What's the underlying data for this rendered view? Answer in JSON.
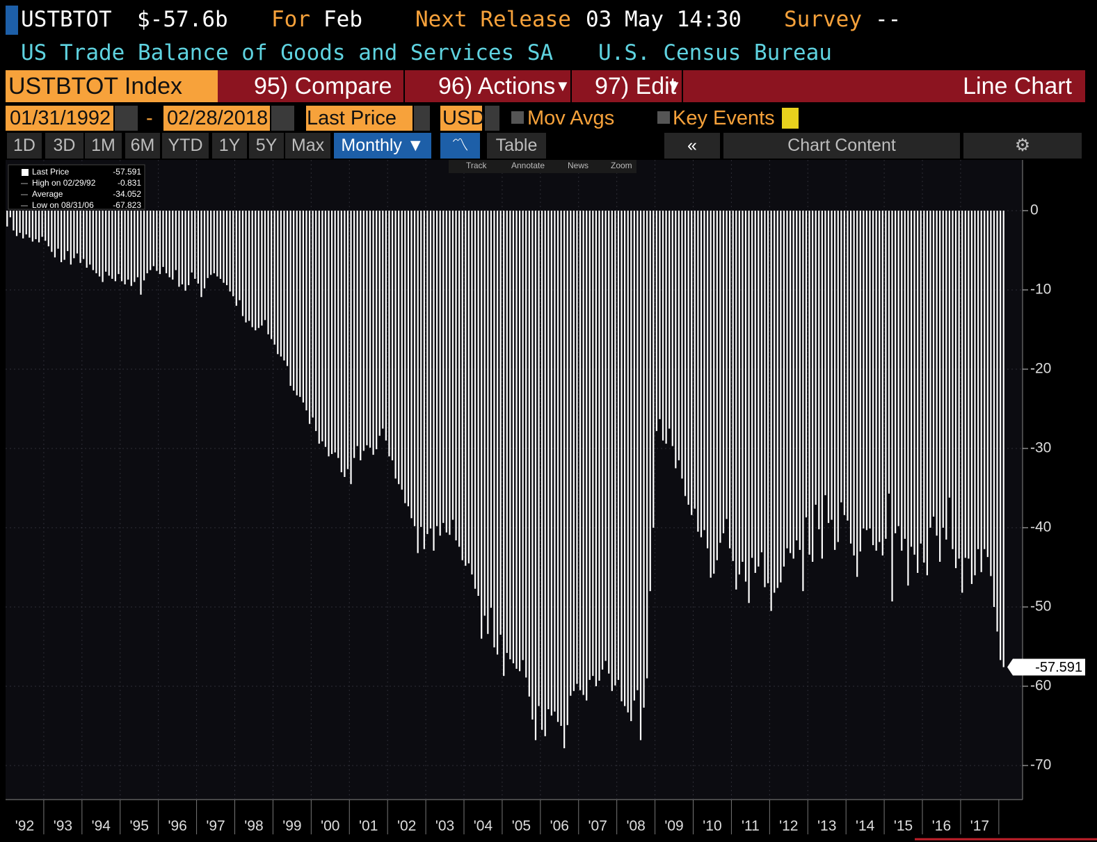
{
  "header": {
    "ticker": "USTBTOT",
    "price": "$-57.6b",
    "for_label": "For",
    "period": "Feb",
    "next_label": "Next Release",
    "next_date": "03 May 14:30",
    "survey_label": "Survey",
    "survey": "--",
    "description": "US Trade Balance of Goods and Services SA",
    "source": "U.S. Census Bureau"
  },
  "toolbar": {
    "security": "USTBTOT Index",
    "compare": "95) Compare",
    "actions": "96) Actions",
    "edit": "97) Edit",
    "chart_type": "Line Chart",
    "start_date": "01/31/1992",
    "end_date": "02/28/2018",
    "field": "Last Price",
    "currency": "USD",
    "mov_avgs": "Mov Avgs",
    "key_events": "Key Events",
    "periods": [
      "1D",
      "3D",
      "1M",
      "6M",
      "YTD",
      "1Y",
      "5Y",
      "Max"
    ],
    "frequency": "Monthly ▼",
    "table": "Table",
    "chart_content": "Chart Content",
    "tools": [
      "Track",
      "Annotate",
      "News",
      "Zoom"
    ]
  },
  "chart_data": {
    "type": "bar",
    "color": "#ffffff",
    "grid": true,
    "ylim": [
      -74.3,
      6.4
    ],
    "yticks": [
      0,
      -10,
      -20,
      -30,
      -40,
      -50,
      -60,
      -70
    ],
    "x_labels": [
      "'92",
      "'93",
      "'94",
      "'95",
      "'96",
      "'97",
      "'98",
      "'99",
      "'00",
      "'01",
      "'02",
      "'03",
      "'04",
      "'05",
      "'06",
      "'07",
      "'08",
      "'09",
      "'10",
      "'11",
      "'12",
      "'13",
      "'14",
      "'15",
      "'16",
      "'17"
    ],
    "legend": [
      {
        "label": "Last Price",
        "value": -57.591
      },
      {
        "label": "High on 02/29/92",
        "value": -0.831
      },
      {
        "label": "Average",
        "value": -34.052
      },
      {
        "label": "Low on 08/31/06",
        "value": -67.823
      }
    ],
    "values": [
      -2.0,
      -0.831,
      -2.5,
      -3.2,
      -2.8,
      -3.5,
      -3.0,
      -3.4,
      -3.9,
      -3.6,
      -4.0,
      -3.3,
      -3.8,
      -4.5,
      -5.2,
      -5.9,
      -4.8,
      -6.5,
      -6.2,
      -5.1,
      -6.8,
      -6.0,
      -5.4,
      -6.6,
      -6.1,
      -7.2,
      -6.8,
      -7.5,
      -7.9,
      -8.3,
      -9.0,
      -7.7,
      -8.2,
      -8.6,
      -8.9,
      -8.0,
      -8.9,
      -9.3,
      -8.7,
      -9.5,
      -9.0,
      -8.4,
      -10.6,
      -8.8,
      -7.9,
      -7.5,
      -7.0,
      -7.6,
      -8.0,
      -7.1,
      -7.9,
      -8.4,
      -8.7,
      -7.5,
      -9.6,
      -9.3,
      -10.1,
      -9.4,
      -7.8,
      -8.6,
      -9.2,
      -10.9,
      -9.8,
      -8.5,
      -8.1,
      -7.9,
      -8.3,
      -8.6,
      -9.1,
      -9.4,
      -10.2,
      -10.8,
      -12.0,
      -11.3,
      -13.3,
      -14.1,
      -13.9,
      -14.7,
      -15.1,
      -14.8,
      -14.5,
      -13.8,
      -15.6,
      -16.2,
      -16.9,
      -18.1,
      -18.4,
      -18.9,
      -19.6,
      -22.1,
      -22.7,
      -23.3,
      -23.5,
      -24.2,
      -25.2,
      -26.9,
      -26.1,
      -27.8,
      -29.4,
      -29.1,
      -29.8,
      -31.0,
      -30.7,
      -30.5,
      -31.2,
      -33.0,
      -33.6,
      -32.6,
      -34.5,
      -31.2,
      -29.7,
      -31.5,
      -30.3,
      -29.6,
      -29.9,
      -30.8,
      -30.1,
      -28.4,
      -27.5,
      -29.0,
      -31.0,
      -31.5,
      -33.8,
      -34.5,
      -35.2,
      -36.9,
      -37.3,
      -38.8,
      -39.8,
      -43.2,
      -39.9,
      -42.7,
      -40.8,
      -40.1,
      -42.9,
      -39.8,
      -41.0,
      -39.4,
      -40.6,
      -40.9,
      -39.0,
      -41.6,
      -42.4,
      -44.1,
      -44.8,
      -44.5,
      -45.9,
      -47.7,
      -48.6,
      -54.0,
      -51.1,
      -53.4,
      -50.1,
      -55.1,
      -56.0,
      -53.5,
      -58.7,
      -55.8,
      -56.6,
      -57.1,
      -57.8,
      -58.1,
      -56.7,
      -58.9,
      -61.3,
      -64.2,
      -66.8,
      -62.5,
      -65.5,
      -66.3,
      -62.9,
      -63.7,
      -63.2,
      -64.5,
      -65.0,
      -67.823,
      -64.9,
      -61.2,
      -60.6,
      -59.7,
      -60.5,
      -61.1,
      -61.8,
      -59.2,
      -58.7,
      -60.0,
      -59.3,
      -57.9,
      -56.8,
      -58.4,
      -60.6,
      -59.9,
      -59.2,
      -61.9,
      -62.5,
      -63.3,
      -64.4,
      -61.8,
      -60.5,
      -66.8,
      -62.7,
      -59.0,
      -48.0,
      -40.0,
      -27.8,
      -26.3,
      -29.0,
      -29.4,
      -27.5,
      -29.7,
      -32.5,
      -31.5,
      -33.8,
      -36.0,
      -37.1,
      -38.4,
      -37.6,
      -40.5,
      -41.2,
      -40.3,
      -42.6,
      -46.3,
      -45.8,
      -44.1,
      -41.9,
      -40.7,
      -38.9,
      -42.6,
      -44.2,
      -47.8,
      -45.9,
      -44.3,
      -46.8,
      -49.5,
      -43.8,
      -45.7,
      -44.9,
      -43.1,
      -47.5,
      -47.0,
      -50.5,
      -48.2,
      -47.6,
      -46.9,
      -44.9,
      -42.6,
      -43.2,
      -43.9,
      -41.6,
      -42.8,
      -48.0,
      -38.7,
      -43.4,
      -44.3,
      -37.1,
      -40.2,
      -43.9,
      -35.9,
      -39.4,
      -39.0,
      -42.8,
      -41.8,
      -36.8,
      -38.4,
      -39.1,
      -42.0,
      -43.5,
      -46.2,
      -43.0,
      -40.1,
      -40.3,
      -40.1,
      -42.2,
      -42.9,
      -41.8,
      -43.5,
      -41.4,
      -35.7,
      -49.3,
      -40.7,
      -39.8,
      -42.9,
      -41.4,
      -47.3,
      -42.4,
      -43.4,
      -45.7,
      -42.0,
      -44.4,
      -46.0,
      -40.0,
      -38.6,
      -41.0,
      -44.3,
      -40.0,
      -41.5,
      -36.2,
      -42.7,
      -45.1,
      -43.9,
      -48.2,
      -43.8,
      -43.9,
      -47.1,
      -46.0,
      -42.7,
      -45.6,
      -42.7,
      -43.7,
      -46.1,
      -50.0,
      -53.1,
      -56.7,
      -57.591
    ]
  }
}
